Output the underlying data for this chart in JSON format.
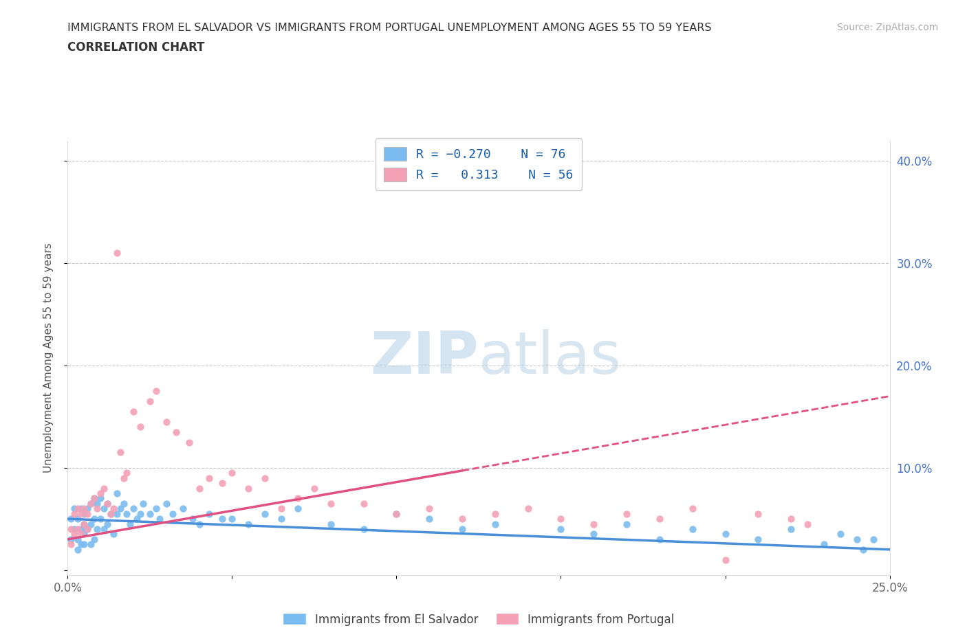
{
  "title_line1": "IMMIGRANTS FROM EL SALVADOR VS IMMIGRANTS FROM PORTUGAL UNEMPLOYMENT AMONG AGES 55 TO 59 YEARS",
  "title_line2": "CORRELATION CHART",
  "source": "Source: ZipAtlas.com",
  "ylabel": "Unemployment Among Ages 55 to 59 years",
  "xlim": [
    0.0,
    0.25
  ],
  "ylim": [
    -0.005,
    0.42
  ],
  "xticks": [
    0.0,
    0.05,
    0.1,
    0.15,
    0.2,
    0.25
  ],
  "xticklabels": [
    "0.0%",
    "",
    "",
    "",
    "",
    "25.0%"
  ],
  "yticks": [
    0.0,
    0.1,
    0.2,
    0.3,
    0.4
  ],
  "yticklabels_right": [
    "",
    "10.0%",
    "20.0%",
    "30.0%",
    "40.0%"
  ],
  "el_salvador_color": "#7bbcf0",
  "el_salvador_line_color": "#4a90d9",
  "portugal_color": "#f4a0b5",
  "portugal_line_color": "#e05080",
  "el_salvador_R": -0.27,
  "el_salvador_N": 76,
  "portugal_R": 0.313,
  "portugal_N": 56,
  "watermark_zip": "ZIP",
  "watermark_atlas": "atlas",
  "legend_label_1": "Immigrants from El Salvador",
  "legend_label_2": "Immigrants from Portugal",
  "el_salvador_x": [
    0.001,
    0.001,
    0.002,
    0.002,
    0.003,
    0.003,
    0.003,
    0.004,
    0.004,
    0.004,
    0.005,
    0.005,
    0.005,
    0.005,
    0.006,
    0.006,
    0.007,
    0.007,
    0.007,
    0.008,
    0.008,
    0.008,
    0.009,
    0.009,
    0.01,
    0.01,
    0.011,
    0.011,
    0.012,
    0.012,
    0.013,
    0.014,
    0.015,
    0.015,
    0.016,
    0.017,
    0.018,
    0.019,
    0.02,
    0.021,
    0.022,
    0.023,
    0.025,
    0.027,
    0.028,
    0.03,
    0.032,
    0.035,
    0.038,
    0.04,
    0.043,
    0.047,
    0.05,
    0.055,
    0.06,
    0.065,
    0.07,
    0.08,
    0.09,
    0.1,
    0.11,
    0.12,
    0.13,
    0.15,
    0.16,
    0.17,
    0.18,
    0.19,
    0.2,
    0.21,
    0.22,
    0.23,
    0.235,
    0.24,
    0.242,
    0.245
  ],
  "el_salvador_y": [
    0.05,
    0.03,
    0.06,
    0.04,
    0.05,
    0.03,
    0.02,
    0.06,
    0.04,
    0.025,
    0.055,
    0.035,
    0.045,
    0.025,
    0.06,
    0.04,
    0.065,
    0.045,
    0.025,
    0.07,
    0.05,
    0.03,
    0.065,
    0.04,
    0.07,
    0.05,
    0.06,
    0.04,
    0.065,
    0.045,
    0.055,
    0.035,
    0.075,
    0.055,
    0.06,
    0.065,
    0.055,
    0.045,
    0.06,
    0.05,
    0.055,
    0.065,
    0.055,
    0.06,
    0.05,
    0.065,
    0.055,
    0.06,
    0.05,
    0.045,
    0.055,
    0.05,
    0.05,
    0.045,
    0.055,
    0.05,
    0.06,
    0.045,
    0.04,
    0.055,
    0.05,
    0.04,
    0.045,
    0.04,
    0.035,
    0.045,
    0.03,
    0.04,
    0.035,
    0.03,
    0.04,
    0.025,
    0.035,
    0.03,
    0.02,
    0.03
  ],
  "portugal_x": [
    0.001,
    0.001,
    0.002,
    0.002,
    0.003,
    0.003,
    0.004,
    0.004,
    0.005,
    0.005,
    0.006,
    0.006,
    0.007,
    0.008,
    0.009,
    0.01,
    0.011,
    0.012,
    0.013,
    0.014,
    0.015,
    0.016,
    0.017,
    0.018,
    0.02,
    0.022,
    0.025,
    0.027,
    0.03,
    0.033,
    0.037,
    0.04,
    0.043,
    0.047,
    0.05,
    0.055,
    0.06,
    0.065,
    0.07,
    0.075,
    0.08,
    0.09,
    0.1,
    0.11,
    0.12,
    0.13,
    0.14,
    0.15,
    0.16,
    0.17,
    0.18,
    0.19,
    0.2,
    0.21,
    0.22,
    0.225
  ],
  "portugal_y": [
    0.04,
    0.025,
    0.055,
    0.035,
    0.06,
    0.04,
    0.055,
    0.035,
    0.06,
    0.045,
    0.055,
    0.04,
    0.065,
    0.07,
    0.06,
    0.075,
    0.08,
    0.065,
    0.055,
    0.06,
    0.31,
    0.115,
    0.09,
    0.095,
    0.155,
    0.14,
    0.165,
    0.175,
    0.145,
    0.135,
    0.125,
    0.08,
    0.09,
    0.085,
    0.095,
    0.08,
    0.09,
    0.06,
    0.07,
    0.08,
    0.065,
    0.065,
    0.055,
    0.06,
    0.05,
    0.055,
    0.06,
    0.05,
    0.045,
    0.055,
    0.05,
    0.06,
    0.01,
    0.055,
    0.05,
    0.045
  ]
}
